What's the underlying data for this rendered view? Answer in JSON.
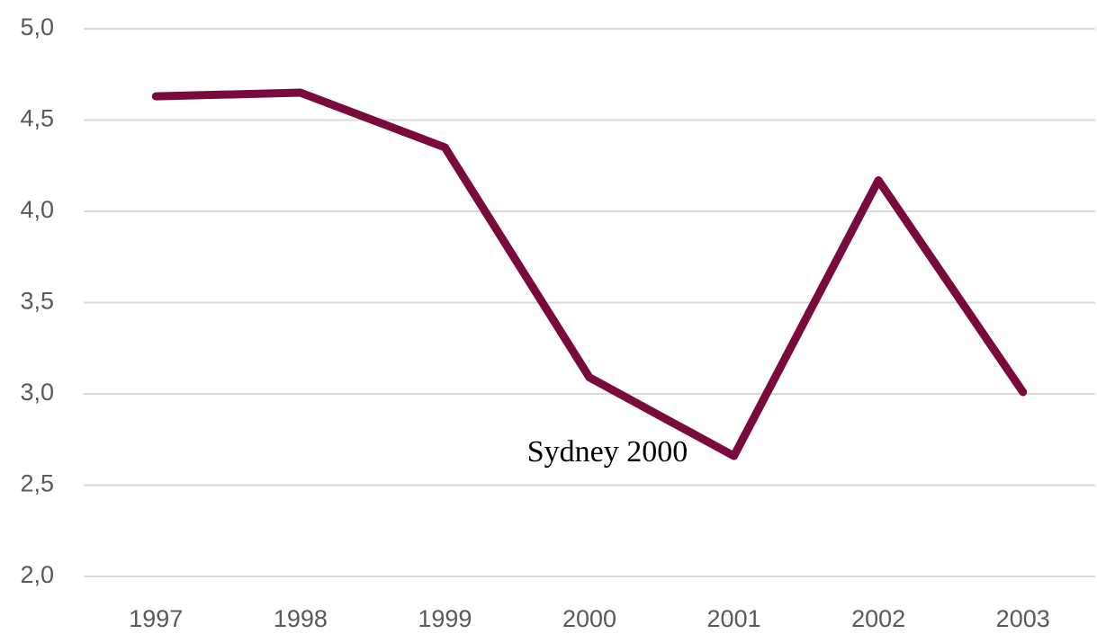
{
  "chart_data": {
    "type": "line",
    "annotation": "Sydney 2000",
    "categories": [
      "1997",
      "1998",
      "1999",
      "2000",
      "2001",
      "2002",
      "2003"
    ],
    "values": [
      4.63,
      4.65,
      4.35,
      3.09,
      2.66,
      4.17,
      3.01
    ],
    "color": "#7a0a3c",
    "ylim": [
      2,
      5
    ],
    "yticks": [
      {
        "value": 2,
        "label": "2,0"
      },
      {
        "value": 2.5,
        "label": "2,5"
      },
      {
        "value": 3,
        "label": "3,0"
      },
      {
        "value": 3.5,
        "label": "3,5"
      },
      {
        "value": 4,
        "label": "4,0"
      },
      {
        "value": 4.5,
        "label": "4,5"
      },
      {
        "value": 5,
        "label": "5,0"
      }
    ],
    "grid": true
  }
}
